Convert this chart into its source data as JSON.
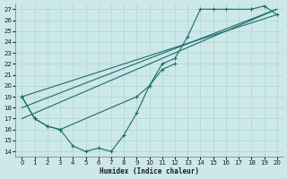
{
  "xlabel": "Humidex (Indice chaleur)",
  "xlim": [
    -0.5,
    20.5
  ],
  "ylim": [
    13.5,
    27.5
  ],
  "xticks": [
    0,
    1,
    2,
    3,
    4,
    5,
    6,
    7,
    8,
    9,
    10,
    11,
    12,
    13,
    14,
    15,
    16,
    17,
    18,
    19,
    20
  ],
  "yticks": [
    14,
    15,
    16,
    17,
    18,
    19,
    20,
    21,
    22,
    23,
    24,
    25,
    26,
    27
  ],
  "bg_color": "#cce8e8",
  "grid_color": "#b0d4d4",
  "line_color": "#1a6b6b",
  "series": [
    {
      "x": [
        0,
        1,
        2,
        3,
        4,
        5,
        6,
        7,
        8,
        9,
        10,
        11,
        12
      ],
      "y": [
        19,
        17,
        16.3,
        16,
        14.5,
        14,
        14.3,
        14,
        15.5,
        17.5,
        20,
        21.5,
        22
      ],
      "has_markers": true
    },
    {
      "x": [
        0,
        1,
        2,
        3,
        9,
        10,
        11,
        12,
        13,
        14,
        15,
        16,
        18,
        19,
        20
      ],
      "y": [
        19,
        17,
        16.3,
        16,
        19,
        20,
        22,
        22.5,
        24.5,
        27,
        27,
        27,
        27,
        27.3,
        26.5
      ],
      "has_markers": true
    },
    {
      "x": [
        0,
        20
      ],
      "y": [
        19,
        26.5
      ],
      "has_markers": false
    },
    {
      "x": [
        0,
        20
      ],
      "y": [
        18,
        27
      ],
      "has_markers": false
    },
    {
      "x": [
        0,
        20
      ],
      "y": [
        17,
        27
      ],
      "has_markers": false
    }
  ]
}
